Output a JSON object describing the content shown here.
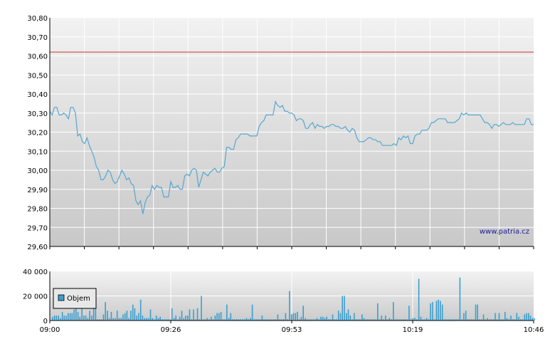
{
  "watermark": "www.patria.cz",
  "colors": {
    "price_line": "#56a7cf",
    "reference_line": "#c83232",
    "volume_bar": "#3a9fcf",
    "grid": "#ffffff",
    "bg_top": "#f2f2f2",
    "bg_bottom": "#c8c8c8"
  },
  "chart_data": [
    {
      "type": "line",
      "title": "",
      "xlabel": "",
      "ylabel": "",
      "ylim": [
        29.6,
        30.8
      ],
      "y_ticks": [
        "30,80",
        "30,70",
        "30,60",
        "30,50",
        "30,40",
        "30,30",
        "30,20",
        "30,10",
        "30,00",
        "29,90",
        "29,80",
        "29,70",
        "29,60"
      ],
      "x_ticks": [
        "09:00",
        "09:26",
        "09:53",
        "10:19",
        "10:46"
      ],
      "grid": true,
      "reference_line": 30.62,
      "series": [
        {
          "values": [
            30.31,
            30.29,
            30.33,
            30.33,
            30.29,
            30.29,
            30.3,
            30.29,
            30.27,
            30.33,
            30.33,
            30.3,
            30.18,
            30.19,
            30.15,
            30.14,
            30.17,
            30.13,
            30.1,
            30.07,
            30.02,
            30.0,
            29.95,
            29.95,
            29.97,
            30.0,
            29.99,
            29.95,
            29.93,
            29.94,
            29.97,
            30.0,
            29.98,
            29.95,
            29.96,
            29.93,
            29.92,
            29.84,
            29.82,
            29.84,
            29.77,
            29.83,
            29.86,
            29.87,
            29.92,
            29.9,
            29.92,
            29.91,
            29.91,
            29.86,
            29.86,
            29.86,
            29.94,
            29.91,
            29.91,
            29.92,
            29.9,
            29.9,
            29.97,
            29.98,
            29.97,
            30.0,
            30.01,
            30.0,
            29.91,
            29.95,
            29.99,
            29.98,
            29.97,
            29.99,
            30.0,
            30.01,
            29.99,
            29.99,
            30.01,
            30.02,
            30.12,
            30.12,
            30.11,
            30.11,
            30.16,
            30.17,
            30.19,
            30.19,
            30.19,
            30.19,
            30.18,
            30.18,
            30.18,
            30.18,
            30.23,
            30.25,
            30.26,
            30.29,
            30.29,
            30.29,
            30.29,
            30.36,
            30.34,
            30.33,
            30.34,
            30.31,
            30.31,
            30.3,
            30.3,
            30.29,
            30.26,
            30.27,
            30.27,
            30.26,
            30.22,
            30.22,
            30.24,
            30.25,
            30.22,
            30.24,
            30.23,
            30.23,
            30.22,
            30.23,
            30.23,
            30.24,
            30.24,
            30.23,
            30.23,
            30.22,
            30.22,
            30.23,
            30.21,
            30.2,
            30.22,
            30.21,
            30.17,
            30.15,
            30.15,
            30.15,
            30.16,
            30.17,
            30.17,
            30.16,
            30.16,
            30.15,
            30.15,
            30.13,
            30.13,
            30.13,
            30.13,
            30.13,
            30.14,
            30.13,
            30.17,
            30.16,
            30.18,
            30.17,
            30.18,
            30.14,
            30.14,
            30.18,
            30.19,
            30.19,
            30.21,
            30.21,
            30.21,
            30.22,
            30.25,
            30.25,
            30.26,
            30.27,
            30.27,
            30.27,
            30.27,
            30.25,
            30.25,
            30.25,
            30.25,
            30.26,
            30.27,
            30.3,
            30.29,
            30.3,
            30.29,
            30.29,
            30.29,
            30.29,
            30.29,
            30.29,
            30.27,
            30.25,
            30.25,
            30.24,
            30.22,
            30.24,
            30.24,
            30.23,
            30.24,
            30.25,
            30.24,
            30.24,
            30.24,
            30.25,
            30.24,
            30.24,
            30.24,
            30.24,
            30.24,
            30.27,
            30.27,
            30.24,
            30.24
          ]
        }
      ]
    },
    {
      "type": "bar",
      "title": "",
      "xlabel": "",
      "ylabel": "",
      "ylim": [
        0,
        40000
      ],
      "y_ticks": [
        "40 000",
        "20 000",
        "0"
      ],
      "x_ticks": [
        "09:00",
        "09:26",
        "09:53",
        "10:19",
        "10:46"
      ],
      "grid": true,
      "legend": {
        "position": "left",
        "entries": [
          "Objem"
        ]
      },
      "series": [
        {
          "name": "Objem",
          "values": [
            3000,
            4000,
            4000,
            4000,
            2000,
            7000,
            4000,
            4000,
            6000,
            6000,
            6000,
            9000,
            16000,
            7000,
            3000,
            17000,
            4000,
            4000,
            2000,
            8000,
            4000,
            11000,
            14000,
            1000,
            1000,
            1000,
            5000,
            15000,
            8000,
            2000,
            7000,
            2000,
            2000,
            8000,
            2000,
            2000,
            5000,
            6000,
            8000,
            2000,
            8000,
            13000,
            10000,
            4000,
            6000,
            17000,
            4000,
            2000,
            2000,
            2000,
            9000,
            2000,
            1000,
            4000,
            2000,
            3000,
            1000,
            1000,
            1000,
            1000,
            1000,
            10000,
            2000,
            4000,
            1000,
            3000,
            8000,
            2000,
            4000,
            4000,
            9000,
            1000,
            9000,
            1000,
            10000,
            1000,
            20000,
            1000,
            1000,
            2000,
            1000,
            3000,
            1000,
            4000,
            6000,
            6000,
            7000,
            1000,
            1000,
            13000,
            2000,
            6000,
            1000,
            1000,
            1000,
            1000,
            1000,
            1000,
            1000,
            2000,
            1000,
            2000,
            13000,
            1000,
            1000,
            1000,
            1000,
            4000,
            1000,
            1000,
            1000,
            1000,
            1000,
            1000,
            1000,
            5000,
            1000,
            1000,
            1000,
            6000,
            1000,
            24000,
            5000,
            6000,
            6000,
            7000,
            1000,
            3000,
            12000,
            2000,
            1000,
            1000,
            1000,
            1000,
            1000,
            2000,
            1000,
            3000,
            3000,
            2000,
            3000,
            1000,
            1000,
            5000,
            1000,
            1000,
            8000,
            6000,
            20000,
            20000,
            6000,
            9000,
            4000,
            1000,
            6000,
            1000,
            1000,
            1000,
            5000,
            2000,
            1000,
            1000,
            1000,
            1000,
            1000,
            1000,
            14000,
            1000,
            4000,
            1000,
            4000,
            1000,
            2000,
            1000,
            15000,
            1000,
            1000,
            1000,
            1000,
            1000,
            1000,
            1000,
            12000,
            1000,
            2000,
            2000,
            1000,
            34000,
            3000,
            1000,
            1000,
            2000,
            1000,
            14000,
            15000,
            1000,
            16000,
            17000,
            16000,
            13000,
            1000,
            1000,
            1000,
            1000,
            1000,
            1000,
            1000,
            1000,
            35000,
            1000,
            6000,
            8000,
            1000,
            1000,
            1000,
            1000,
            13000,
            13000,
            1000,
            1000,
            5000,
            1000,
            2000,
            1000,
            1000,
            1000,
            6000,
            1000,
            6000,
            1000,
            1000,
            7000,
            2000,
            1000,
            4000,
            1000,
            1000,
            6000,
            3000,
            1000,
            1000,
            5000,
            6000,
            6000,
            4000,
            2000,
            2000
          ]
        }
      ]
    }
  ]
}
